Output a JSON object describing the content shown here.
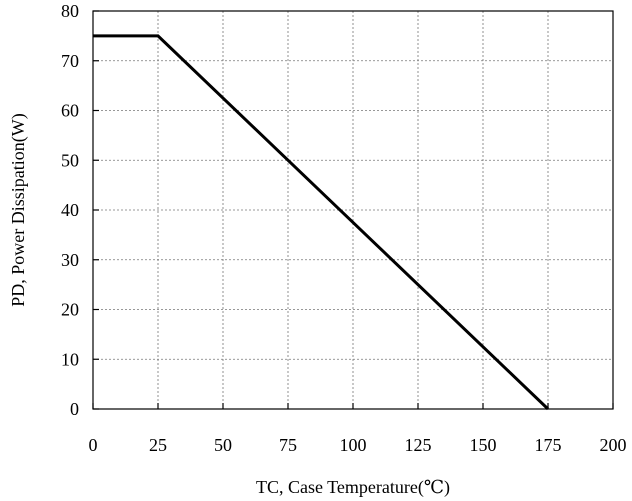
{
  "chart_data": {
    "type": "line",
    "title": "",
    "xlabel": "TC, Case Temperature(℃)",
    "ylabel": "PD, Power Dissipation(W)",
    "xlim": [
      0,
      200
    ],
    "ylim": [
      0,
      80
    ],
    "x_ticks": [
      0,
      25,
      50,
      75,
      100,
      125,
      150,
      175,
      200
    ],
    "y_ticks": [
      0,
      10,
      20,
      30,
      40,
      50,
      60,
      70,
      80
    ],
    "x_tick_labels": [
      "0",
      "25",
      "50",
      "75",
      "100",
      "125",
      "150",
      "175",
      "200"
    ],
    "y_tick_labels": [
      "0",
      "10",
      "20",
      "30",
      "40",
      "50",
      "60",
      "70",
      "80"
    ],
    "grid": true,
    "series": [
      {
        "x": [
          0,
          25,
          175
        ],
        "y": [
          75,
          75,
          0
        ],
        "color": "#000000"
      }
    ]
  }
}
